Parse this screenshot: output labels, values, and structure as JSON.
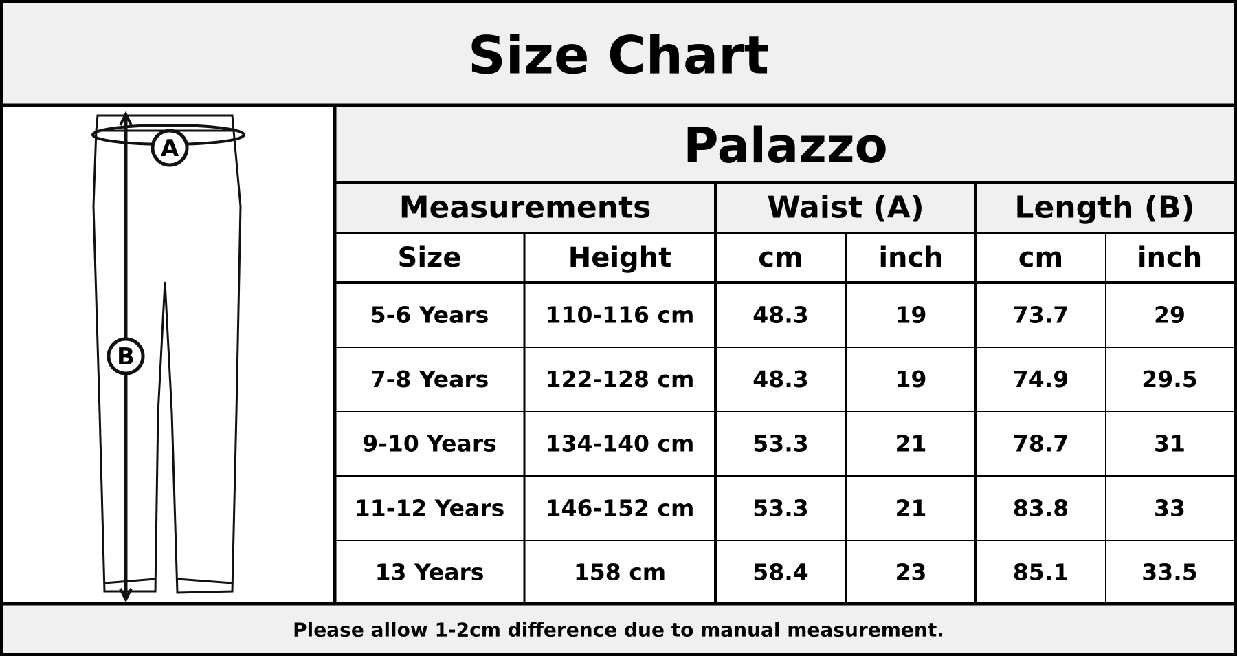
{
  "title": "Size Chart",
  "diagram": {
    "label_a": "A",
    "label_b": "B"
  },
  "table": {
    "product": "Palazzo",
    "groups": [
      "Measurements",
      "Waist (A)",
      "Length (B)"
    ],
    "columns": [
      "Size",
      "Height",
      "cm",
      "inch",
      "cm",
      "inch"
    ],
    "rows": [
      [
        "5-6 Years",
        "110-116 cm",
        48.3,
        19,
        73.7,
        29
      ],
      [
        "7-8 Years",
        "122-128 cm",
        48.3,
        19,
        74.9,
        29.5
      ],
      [
        "9-10 Years",
        "134-140 cm",
        53.3,
        21,
        78.7,
        31
      ],
      [
        "11-12 Years",
        "146-152 cm",
        53.3,
        21,
        83.8,
        33
      ],
      [
        "13 Years",
        "158 cm",
        58.4,
        23,
        85.1,
        33.5
      ]
    ]
  },
  "footer": "Please allow 1-2cm difference due to manual measurement."
}
